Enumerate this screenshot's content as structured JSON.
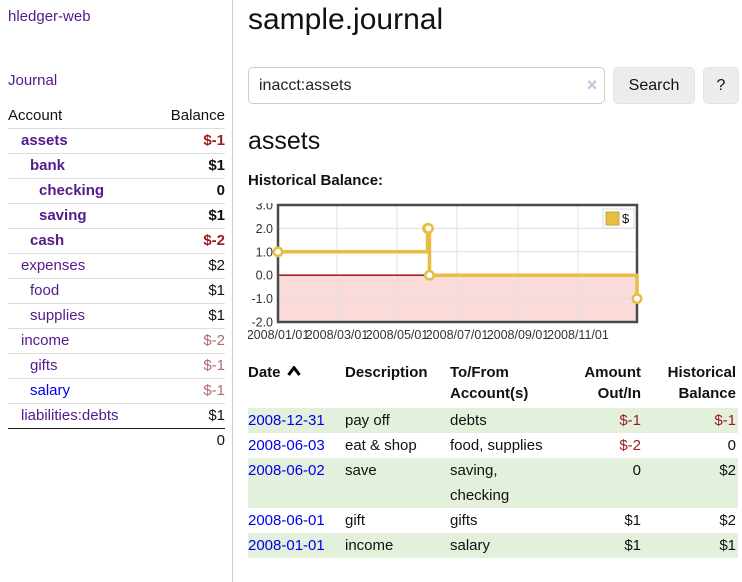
{
  "app": {
    "title": "hledger-web",
    "nav_journal": "Journal"
  },
  "sidebar": {
    "table": {
      "headers": [
        "Account",
        "Balance"
      ],
      "rows": [
        {
          "account": "assets",
          "balance": "$-1",
          "depth": 1,
          "bold": true,
          "tone": "neg-strong",
          "link": "purple"
        },
        {
          "account": "bank",
          "balance": "$1",
          "depth": 2,
          "bold": true,
          "tone": "black",
          "link": "purple"
        },
        {
          "account": "checking",
          "balance": "0",
          "depth": 3,
          "bold": true,
          "tone": "black",
          "link": "purple"
        },
        {
          "account": "saving",
          "balance": "$1",
          "depth": 3,
          "bold": true,
          "tone": "black",
          "link": "purple"
        },
        {
          "account": "cash",
          "balance": "$-2",
          "depth": 2,
          "bold": true,
          "tone": "neg-strong",
          "link": "purple"
        },
        {
          "account": "expenses",
          "balance": "$2",
          "depth": 1,
          "bold": false,
          "tone": "black",
          "link": "purple"
        },
        {
          "account": "food",
          "balance": "$1",
          "depth": 2,
          "bold": false,
          "tone": "black",
          "link": "purple"
        },
        {
          "account": "supplies",
          "balance": "$1",
          "depth": 2,
          "bold": false,
          "tone": "black",
          "link": "purple"
        },
        {
          "account": "income",
          "balance": "$-2",
          "depth": 1,
          "bold": false,
          "tone": "neg-soft",
          "link": "purple"
        },
        {
          "account": "gifts",
          "balance": "$-1",
          "depth": 2,
          "bold": false,
          "tone": "neg-soft",
          "link": "purple"
        },
        {
          "account": "salary",
          "balance": "$-1",
          "depth": 2,
          "bold": false,
          "tone": "neg-soft",
          "link": "blue"
        },
        {
          "account": "liabilities:debts",
          "balance": "$1",
          "depth": 1,
          "bold": false,
          "tone": "black",
          "link": "purple"
        }
      ],
      "total": "0"
    }
  },
  "main": {
    "title": "sample.journal",
    "search": {
      "value": "inacct:assets",
      "clear_glyph": "×",
      "button_label": "Search",
      "help_label": "?"
    },
    "account_heading": "assets",
    "chart_label": "Historical Balance:"
  },
  "chart_data": {
    "type": "line",
    "title": "Historical Balance",
    "step": true,
    "series": [
      {
        "name": "$",
        "points": [
          [
            "2008-01-01",
            1
          ],
          [
            "2008-06-01",
            2
          ],
          [
            "2008-06-02",
            2
          ],
          [
            "2008-06-03",
            0
          ],
          [
            "2008-12-31",
            -1
          ]
        ]
      }
    ],
    "xrange": [
      "2008-01-01",
      "2008-12-31"
    ],
    "ylim": [
      -2,
      3
    ],
    "ytick_labels": [
      "3.0",
      "2.0",
      "1.0",
      "0.0",
      "-1.0",
      "-2.0"
    ],
    "xtick_labels": [
      "2008/01/01",
      "2008/03/01",
      "2008/05/01",
      "2008/07/01",
      "2008/09/01",
      "2008/11/01"
    ],
    "grid": true,
    "legend_position": "top-right",
    "line_color": "#e7bd42",
    "negative_fill": "#fbdada",
    "zero_line_color": "#990000"
  },
  "register": {
    "headers": [
      "Date",
      "Description",
      "To/From Account(s)",
      "Amount Out/In",
      "Historical Balance"
    ],
    "rows": [
      {
        "date": "2008-12-31",
        "description": "pay off",
        "accounts": "debts",
        "amount": "$-1",
        "amount_tone": "neg",
        "balance": "$-1",
        "balance_tone": "neg"
      },
      {
        "date": "2008-06-03",
        "description": "eat & shop",
        "accounts": "food, supplies",
        "amount": "$-2",
        "amount_tone": "neg",
        "balance": "0",
        "balance_tone": "black"
      },
      {
        "date": "2008-06-02",
        "description": "save",
        "accounts": "saving, checking",
        "amount": "0",
        "amount_tone": "black",
        "balance": "$2",
        "balance_tone": "black"
      },
      {
        "date": "2008-06-01",
        "description": "gift",
        "accounts": "gifts",
        "amount": "$1",
        "amount_tone": "black",
        "balance": "$2",
        "balance_tone": "black"
      },
      {
        "date": "2008-01-01",
        "description": "income",
        "accounts": "salary",
        "amount": "$1",
        "amount_tone": "black",
        "balance": "$1",
        "balance_tone": "black"
      }
    ]
  },
  "colors": {
    "link_purple": "#551a8b",
    "link_blue": "#0000e6",
    "negative_strong": "#9c1b1f",
    "negative_soft": "#b46a6e",
    "stripe_green": "#e2f0dc",
    "chart_line_gold": "#e7bd42",
    "chart_negative_fill": "#fbdada",
    "chart_zero_line": "#990000"
  }
}
